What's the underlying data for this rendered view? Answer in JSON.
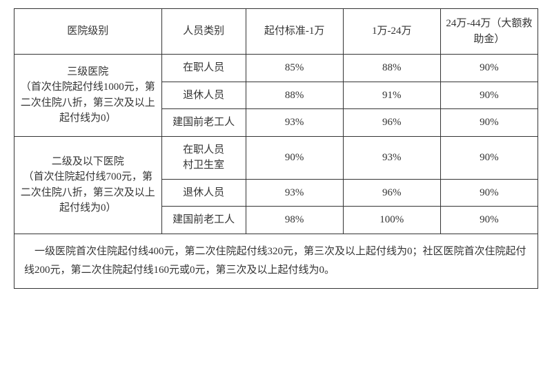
{
  "headers": {
    "col1": "医院级别",
    "col2": "人员类别",
    "col3": "起付标准-1万",
    "col4": "1万-24万",
    "col5": "24万-44万（大额救助金）"
  },
  "hospital1": {
    "label": "三级医院\n（首次住院起付线1000元，第二次住院八折，第三次及以上起付线为0）"
  },
  "hospital2": {
    "label": "二级及以下医院\n（首次住院起付线700元，第二次住院八折，第三次及以上起付线为0）"
  },
  "h1r1": {
    "person": "在职人员",
    "v1": "85%",
    "v2": "88%",
    "v3": "90%"
  },
  "h1r2": {
    "person": "退休人员",
    "v1": "88%",
    "v2": "91%",
    "v3": "90%"
  },
  "h1r3": {
    "person": "建国前老工人",
    "v1": "93%",
    "v2": "96%",
    "v3": "90%"
  },
  "h2r1": {
    "person": "在职人员\n村卫生室",
    "v1": "90%",
    "v2": "93%",
    "v3": "90%"
  },
  "h2r2": {
    "person": "退休人员",
    "v1": "93%",
    "v2": "96%",
    "v3": "90%"
  },
  "h2r3": {
    "person": "建国前老工人",
    "v1": "98%",
    "v2": "100%",
    "v3": "90%"
  },
  "footer": "　一级医院首次住院起付线400元，第二次住院起付线320元，第三次及以上起付线为0；社区医院首次住院起付线200元，第二次住院起付线160元或0元，第三次及以上起付线为0。"
}
